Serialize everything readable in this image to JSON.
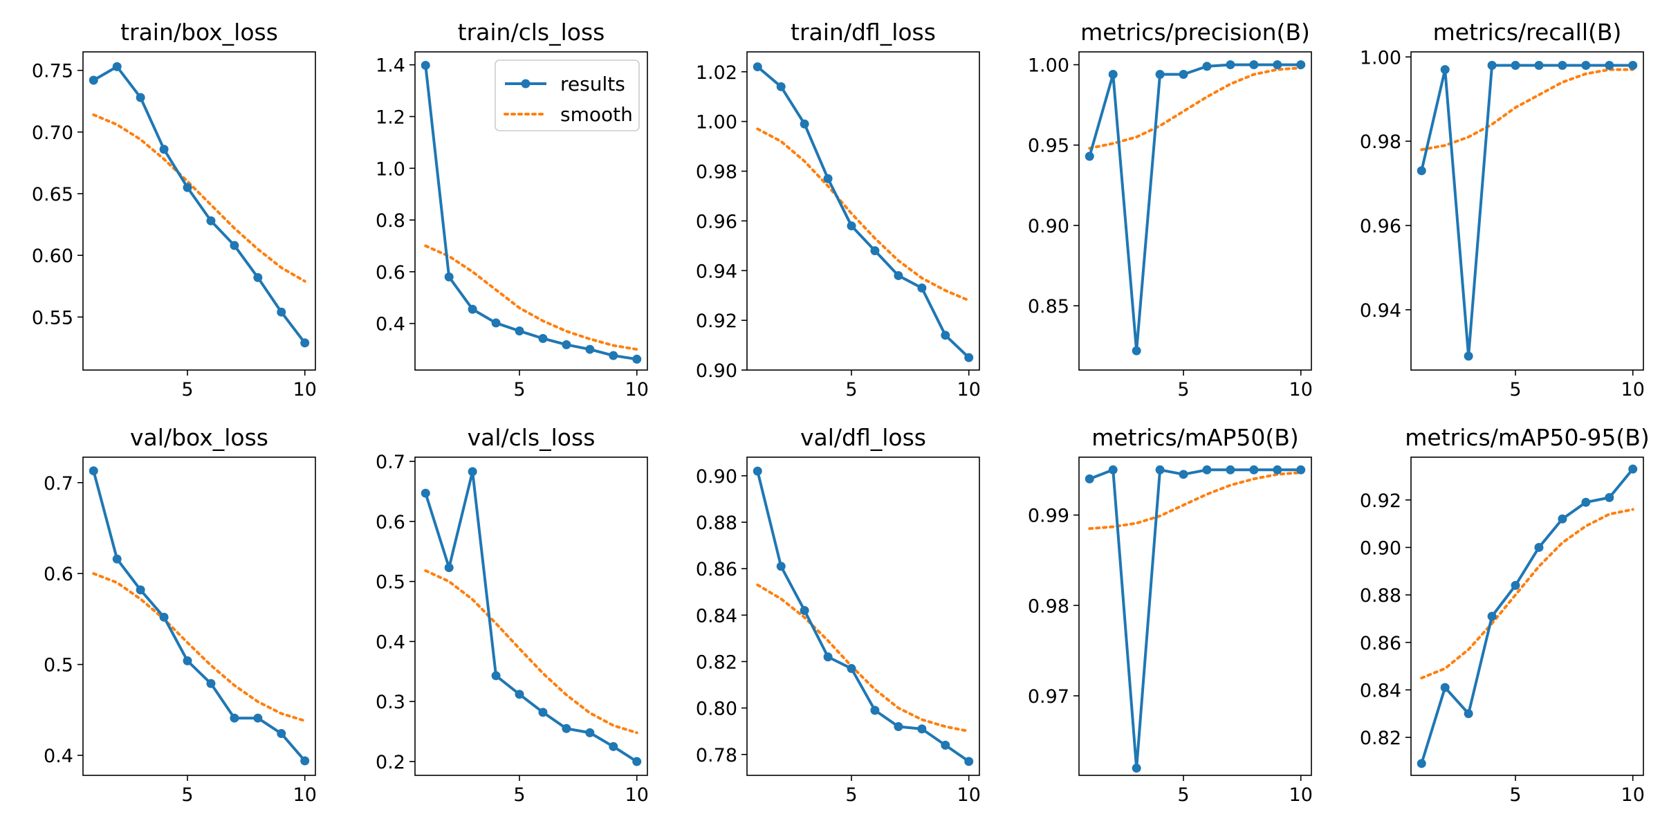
{
  "colors": {
    "results": "#1f77b4",
    "smooth": "#ff7f0e"
  },
  "legend": {
    "results_label": "results",
    "smooth_label": "smooth"
  },
  "chart_data": [
    {
      "type": "line",
      "title": "train/box_loss",
      "x": [
        1,
        2,
        3,
        4,
        5,
        6,
        7,
        8,
        9,
        10
      ],
      "ylim": [
        0.507,
        0.765
      ],
      "xticks": [
        5,
        10
      ],
      "yticks": [
        "0.55",
        "0.60",
        "0.65",
        "0.70",
        "0.75"
      ],
      "series": [
        {
          "name": "results",
          "values": [
            0.742,
            0.753,
            0.728,
            0.686,
            0.655,
            0.628,
            0.608,
            0.582,
            0.554,
            0.529
          ]
        },
        {
          "name": "smooth",
          "values": [
            0.714,
            0.706,
            0.694,
            0.678,
            0.66,
            0.641,
            0.622,
            0.605,
            0.59,
            0.579
          ]
        }
      ]
    },
    {
      "type": "line",
      "title": "train/cls_loss",
      "x": [
        1,
        2,
        3,
        4,
        5,
        6,
        7,
        8,
        9,
        10
      ],
      "ylim": [
        0.22,
        1.45
      ],
      "xticks": [
        5,
        10
      ],
      "yticks": [
        "0.4",
        "0.6",
        "0.8",
        "1.0",
        "1.2",
        "1.4"
      ],
      "legend": true,
      "series": [
        {
          "name": "results",
          "values": [
            1.398,
            0.58,
            0.455,
            0.402,
            0.371,
            0.342,
            0.318,
            0.3,
            0.276,
            0.262
          ]
        },
        {
          "name": "smooth",
          "values": [
            0.7,
            0.66,
            0.6,
            0.53,
            0.46,
            0.41,
            0.37,
            0.34,
            0.315,
            0.3
          ]
        }
      ]
    },
    {
      "type": "line",
      "title": "train/dfl_loss",
      "x": [
        1,
        2,
        3,
        4,
        5,
        6,
        7,
        8,
        9,
        10
      ],
      "ylim": [
        0.9,
        1.028
      ],
      "xticks": [
        5,
        10
      ],
      "yticks": [
        "0.90",
        "0.92",
        "0.94",
        "0.96",
        "0.98",
        "1.00",
        "1.02"
      ],
      "series": [
        {
          "name": "results",
          "values": [
            1.022,
            1.014,
            0.999,
            0.977,
            0.958,
            0.948,
            0.938,
            0.933,
            0.914,
            0.905
          ]
        },
        {
          "name": "smooth",
          "values": [
            0.997,
            0.992,
            0.984,
            0.974,
            0.963,
            0.953,
            0.944,
            0.937,
            0.932,
            0.928
          ]
        }
      ]
    },
    {
      "type": "line",
      "title": "metrics/precision(B)",
      "x": [
        1,
        2,
        3,
        4,
        5,
        6,
        7,
        8,
        9,
        10
      ],
      "ylim": [
        0.81,
        1.008
      ],
      "xticks": [
        5,
        10
      ],
      "yticks": [
        "0.85",
        "0.90",
        "0.95",
        "1.00"
      ],
      "series": [
        {
          "name": "results",
          "values": [
            0.943,
            0.994,
            0.822,
            0.994,
            0.994,
            0.999,
            1.0,
            1.0,
            1.0,
            1.0
          ]
        },
        {
          "name": "smooth",
          "values": [
            0.948,
            0.951,
            0.955,
            0.962,
            0.971,
            0.98,
            0.988,
            0.994,
            0.997,
            0.998
          ]
        }
      ]
    },
    {
      "type": "line",
      "title": "metrics/recall(B)",
      "x": [
        1,
        2,
        3,
        4,
        5,
        6,
        7,
        8,
        9,
        10
      ],
      "ylim": [
        0.9257,
        1.0012
      ],
      "xticks": [
        5,
        10
      ],
      "yticks": [
        "0.94",
        "0.96",
        "0.98",
        "1.00"
      ],
      "series": [
        {
          "name": "results",
          "values": [
            0.973,
            0.997,
            0.929,
            0.998,
            0.998,
            0.998,
            0.998,
            0.998,
            0.998,
            0.998
          ]
        },
        {
          "name": "smooth",
          "values": [
            0.978,
            0.979,
            0.981,
            0.984,
            0.988,
            0.991,
            0.994,
            0.996,
            0.997,
            0.997
          ]
        }
      ]
    },
    {
      "type": "line",
      "title": "val/box_loss",
      "x": [
        1,
        2,
        3,
        4,
        5,
        6,
        7,
        8,
        9,
        10
      ],
      "ylim": [
        0.378,
        0.728
      ],
      "xticks": [
        5,
        10
      ],
      "yticks": [
        "0.4",
        "0.5",
        "0.6",
        "0.7"
      ],
      "series": [
        {
          "name": "results",
          "values": [
            0.713,
            0.616,
            0.582,
            0.552,
            0.504,
            0.479,
            0.441,
            0.441,
            0.424,
            0.394
          ]
        },
        {
          "name": "smooth",
          "values": [
            0.6,
            0.59,
            0.572,
            0.55,
            0.524,
            0.499,
            0.477,
            0.459,
            0.446,
            0.438
          ]
        }
      ]
    },
    {
      "type": "line",
      "title": "val/cls_loss",
      "x": [
        1,
        2,
        3,
        4,
        5,
        6,
        7,
        8,
        9,
        10
      ],
      "ylim": [
        0.177,
        0.707
      ],
      "xticks": [
        5,
        10
      ],
      "yticks": [
        "0.2",
        "0.3",
        "0.4",
        "0.5",
        "0.6",
        "0.7"
      ],
      "series": [
        {
          "name": "results",
          "values": [
            0.647,
            0.523,
            0.683,
            0.343,
            0.312,
            0.282,
            0.255,
            0.248,
            0.225,
            0.2
          ]
        },
        {
          "name": "smooth",
          "values": [
            0.518,
            0.5,
            0.47,
            0.43,
            0.388,
            0.347,
            0.311,
            0.281,
            0.26,
            0.248
          ]
        }
      ]
    },
    {
      "type": "line",
      "title": "val/dfl_loss",
      "x": [
        1,
        2,
        3,
        4,
        5,
        6,
        7,
        8,
        9,
        10
      ],
      "ylim": [
        0.771,
        0.908
      ],
      "xticks": [
        5,
        10
      ],
      "yticks": [
        "0.78",
        "0.80",
        "0.82",
        "0.84",
        "0.86",
        "0.88",
        "0.90"
      ],
      "series": [
        {
          "name": "results",
          "values": [
            0.902,
            0.861,
            0.842,
            0.822,
            0.817,
            0.799,
            0.792,
            0.791,
            0.784,
            0.777
          ]
        },
        {
          "name": "smooth",
          "values": [
            0.853,
            0.847,
            0.839,
            0.829,
            0.818,
            0.808,
            0.8,
            0.795,
            0.792,
            0.79
          ]
        }
      ]
    },
    {
      "type": "line",
      "title": "metrics/mAP50(B)",
      "x": [
        1,
        2,
        3,
        4,
        5,
        6,
        7,
        8,
        9,
        10
      ],
      "ylim": [
        0.9612,
        0.9964
      ],
      "xticks": [
        5,
        10
      ],
      "yticks": [
        "0.97",
        "0.98",
        "0.99"
      ],
      "series": [
        {
          "name": "results",
          "values": [
            0.994,
            0.995,
            0.962,
            0.995,
            0.9945,
            0.995,
            0.995,
            0.995,
            0.995,
            0.995
          ]
        },
        {
          "name": "smooth",
          "values": [
            0.9885,
            0.9887,
            0.9891,
            0.9899,
            0.9911,
            0.9923,
            0.9933,
            0.994,
            0.9945,
            0.9947
          ]
        }
      ]
    },
    {
      "type": "line",
      "title": "metrics/mAP50-95(B)",
      "x": [
        1,
        2,
        3,
        4,
        5,
        6,
        7,
        8,
        9,
        10
      ],
      "ylim": [
        0.804,
        0.938
      ],
      "xticks": [
        5,
        10
      ],
      "yticks": [
        "0.82",
        "0.84",
        "0.86",
        "0.88",
        "0.90",
        "0.92"
      ],
      "series": [
        {
          "name": "results",
          "values": [
            0.809,
            0.841,
            0.83,
            0.871,
            0.884,
            0.9,
            0.912,
            0.919,
            0.921,
            0.933
          ]
        },
        {
          "name": "smooth",
          "values": [
            0.845,
            0.849,
            0.857,
            0.868,
            0.88,
            0.892,
            0.902,
            0.909,
            0.914,
            0.916
          ]
        }
      ]
    }
  ]
}
